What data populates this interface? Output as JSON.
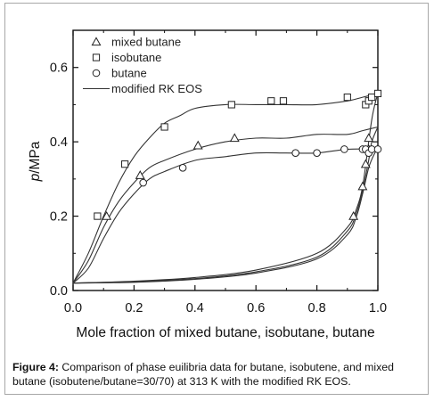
{
  "chart_data": {
    "type": "scatter",
    "title": "",
    "xlabel": "Mole fraction of mixed butane, isobutane, butane",
    "ylabel_italic": "p",
    "ylabel_rest": "/MPa",
    "xlim": [
      0.0,
      1.0
    ],
    "ylim": [
      0.0,
      0.7
    ],
    "xticks": [
      "0.0",
      "0.2",
      "0.4",
      "0.6",
      "0.8",
      "1.0"
    ],
    "yticks": [
      "0.0",
      "0.2",
      "0.4",
      "0.6"
    ],
    "legend_position": "top-left",
    "legend": [
      {
        "label": "mixed butane",
        "marker": "triangle"
      },
      {
        "label": "isobutane",
        "marker": "square"
      },
      {
        "label": "butane",
        "marker": "circle"
      },
      {
        "label": "modified RK EOS",
        "marker": "line"
      }
    ],
    "series": [
      {
        "name": "mixed butane",
        "marker": "triangle",
        "points": [
          [
            0.11,
            0.2
          ],
          [
            0.22,
            0.31
          ],
          [
            0.41,
            0.39
          ],
          [
            0.53,
            0.41
          ],
          [
            0.92,
            0.2
          ],
          [
            0.95,
            0.28
          ],
          [
            0.96,
            0.34
          ],
          [
            0.97,
            0.38
          ],
          [
            0.97,
            0.41
          ]
        ]
      },
      {
        "name": "isobutane",
        "marker": "square",
        "points": [
          [
            0.08,
            0.2
          ],
          [
            0.17,
            0.34
          ],
          [
            0.3,
            0.44
          ],
          [
            0.52,
            0.5
          ],
          [
            0.65,
            0.51
          ],
          [
            0.69,
            0.51
          ],
          [
            0.9,
            0.52
          ],
          [
            0.96,
            0.5
          ],
          [
            0.97,
            0.51
          ],
          [
            0.98,
            0.52
          ],
          [
            1.0,
            0.53
          ]
        ]
      },
      {
        "name": "butane",
        "marker": "circle",
        "points": [
          [
            0.23,
            0.29
          ],
          [
            0.36,
            0.33
          ],
          [
            0.73,
            0.37
          ],
          [
            0.8,
            0.37
          ],
          [
            0.89,
            0.38
          ],
          [
            0.95,
            0.38
          ],
          [
            0.96,
            0.38
          ],
          [
            0.97,
            0.37
          ],
          [
            0.98,
            0.38
          ],
          [
            1.0,
            0.38
          ]
        ]
      }
    ],
    "model_curves": [
      {
        "name": "isobutane bubble",
        "points": [
          [
            0.0,
            0.02
          ],
          [
            0.05,
            0.1
          ],
          [
            0.1,
            0.2
          ],
          [
            0.15,
            0.29
          ],
          [
            0.2,
            0.36
          ],
          [
            0.25,
            0.41
          ],
          [
            0.3,
            0.45
          ],
          [
            0.35,
            0.47
          ],
          [
            0.4,
            0.49
          ],
          [
            0.5,
            0.5
          ],
          [
            0.6,
            0.5
          ],
          [
            0.7,
            0.5
          ],
          [
            0.8,
            0.5
          ],
          [
            0.9,
            0.51
          ],
          [
            0.95,
            0.52
          ],
          [
            1.0,
            0.53
          ]
        ]
      },
      {
        "name": "mixed butane bubble",
        "points": [
          [
            0.0,
            0.02
          ],
          [
            0.05,
            0.08
          ],
          [
            0.1,
            0.17
          ],
          [
            0.15,
            0.24
          ],
          [
            0.2,
            0.29
          ],
          [
            0.25,
            0.33
          ],
          [
            0.3,
            0.35
          ],
          [
            0.4,
            0.38
          ],
          [
            0.5,
            0.4
          ],
          [
            0.6,
            0.41
          ],
          [
            0.7,
            0.41
          ],
          [
            0.8,
            0.42
          ],
          [
            0.9,
            0.42
          ],
          [
            0.95,
            0.43
          ],
          [
            1.0,
            0.44
          ]
        ]
      },
      {
        "name": "butane bubble",
        "points": [
          [
            0.0,
            0.02
          ],
          [
            0.05,
            0.06
          ],
          [
            0.1,
            0.14
          ],
          [
            0.15,
            0.21
          ],
          [
            0.2,
            0.26
          ],
          [
            0.25,
            0.3
          ],
          [
            0.3,
            0.32
          ],
          [
            0.4,
            0.35
          ],
          [
            0.5,
            0.36
          ],
          [
            0.6,
            0.37
          ],
          [
            0.7,
            0.37
          ],
          [
            0.8,
            0.37
          ],
          [
            0.9,
            0.38
          ],
          [
            1.0,
            0.38
          ]
        ]
      },
      {
        "name": "isobutane dew",
        "points": [
          [
            0.0,
            0.02
          ],
          [
            0.2,
            0.025
          ],
          [
            0.4,
            0.035
          ],
          [
            0.6,
            0.055
          ],
          [
            0.8,
            0.1
          ],
          [
            0.9,
            0.17
          ],
          [
            0.93,
            0.22
          ],
          [
            0.95,
            0.28
          ],
          [
            0.97,
            0.4
          ],
          [
            0.98,
            0.46
          ],
          [
            0.99,
            0.5
          ],
          [
            1.0,
            0.53
          ]
        ]
      },
      {
        "name": "mixed butane dew",
        "points": [
          [
            0.0,
            0.02
          ],
          [
            0.2,
            0.024
          ],
          [
            0.4,
            0.032
          ],
          [
            0.6,
            0.05
          ],
          [
            0.8,
            0.09
          ],
          [
            0.9,
            0.16
          ],
          [
            0.93,
            0.21
          ],
          [
            0.95,
            0.27
          ],
          [
            0.97,
            0.35
          ],
          [
            0.98,
            0.4
          ],
          [
            1.0,
            0.44
          ]
        ]
      },
      {
        "name": "butane dew",
        "points": [
          [
            0.0,
            0.02
          ],
          [
            0.2,
            0.022
          ],
          [
            0.4,
            0.03
          ],
          [
            0.6,
            0.047
          ],
          [
            0.8,
            0.085
          ],
          [
            0.9,
            0.15
          ],
          [
            0.93,
            0.2
          ],
          [
            0.95,
            0.26
          ],
          [
            0.97,
            0.33
          ],
          [
            0.99,
            0.37
          ],
          [
            1.0,
            0.38
          ]
        ]
      }
    ]
  },
  "caption": {
    "label": "Figure 4:",
    "text": " Comparison of phase euilibria data for butane, isobutene, and mixed butane (isobutene/butane=30/70) at 313 K with the modified RK EOS."
  }
}
